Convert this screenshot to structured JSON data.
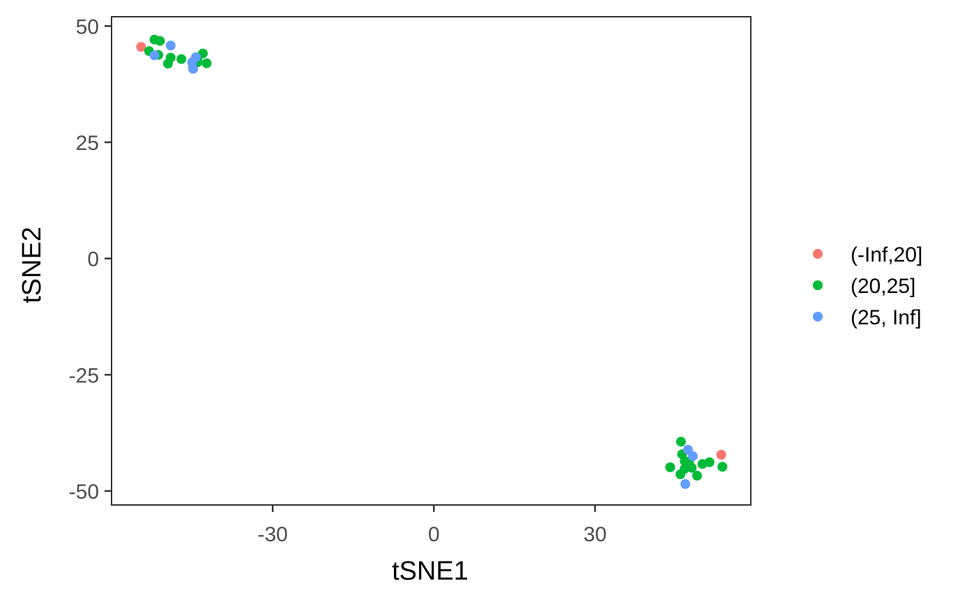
{
  "chart_data": {
    "type": "scatter",
    "xlabel": "tSNE1",
    "ylabel": "tSNE2",
    "xlim": [
      -60,
      59
    ],
    "ylim": [
      -53,
      52
    ],
    "x_ticks": [
      -30,
      0,
      30
    ],
    "x_tick_labels": [
      "-30",
      "0",
      "30"
    ],
    "y_ticks": [
      -50,
      -25,
      0,
      25,
      50
    ],
    "y_tick_labels": [
      "-50",
      "-25",
      "0",
      "25",
      "50"
    ],
    "grid": false,
    "legend_position": "right",
    "series": [
      {
        "name": "(-Inf,20]",
        "color": "#f8766d",
        "points": [
          {
            "x": -54.5,
            "y": 45.5
          },
          {
            "x": 53.5,
            "y": -42.2
          }
        ]
      },
      {
        "name": "(20,25]",
        "color": "#00ba38",
        "points": [
          {
            "x": -53.0,
            "y": 44.6
          },
          {
            "x": -52.0,
            "y": 47.1
          },
          {
            "x": -51.0,
            "y": 46.8
          },
          {
            "x": -51.3,
            "y": 43.8
          },
          {
            "x": -49.5,
            "y": 41.9
          },
          {
            "x": -49.0,
            "y": 43.2
          },
          {
            "x": -47.0,
            "y": 42.9
          },
          {
            "x": -44.0,
            "y": 43.0
          },
          {
            "x": -44.5,
            "y": 42.5
          },
          {
            "x": -44.0,
            "y": 42.2
          },
          {
            "x": -44.8,
            "y": 41.2
          },
          {
            "x": -44.0,
            "y": 43.2
          },
          {
            "x": -43.0,
            "y": 44.1
          },
          {
            "x": -42.3,
            "y": 42.0
          },
          {
            "x": 46.0,
            "y": -39.4
          },
          {
            "x": 46.2,
            "y": -42.1
          },
          {
            "x": 46.7,
            "y": -43.6
          },
          {
            "x": 47.5,
            "y": -43.7
          },
          {
            "x": 44.0,
            "y": -44.9
          },
          {
            "x": 46.7,
            "y": -45.2
          },
          {
            "x": 48.0,
            "y": -45.0
          },
          {
            "x": 45.9,
            "y": -46.4
          },
          {
            "x": 49.0,
            "y": -46.7
          },
          {
            "x": 50.0,
            "y": -44.2
          },
          {
            "x": 51.3,
            "y": -43.8
          },
          {
            "x": 53.7,
            "y": -44.8
          }
        ]
      },
      {
        "name": "(25, Inf]",
        "color": "#619cff",
        "points": [
          {
            "x": -52.0,
            "y": 43.7
          },
          {
            "x": -49.0,
            "y": 45.8
          },
          {
            "x": -45.0,
            "y": 42.2
          },
          {
            "x": -44.3,
            "y": 43.3
          },
          {
            "x": -44.8,
            "y": 40.8
          },
          {
            "x": 47.3,
            "y": -41.1
          },
          {
            "x": 48.2,
            "y": -42.5
          },
          {
            "x": 46.8,
            "y": -48.5
          }
        ]
      }
    ]
  }
}
